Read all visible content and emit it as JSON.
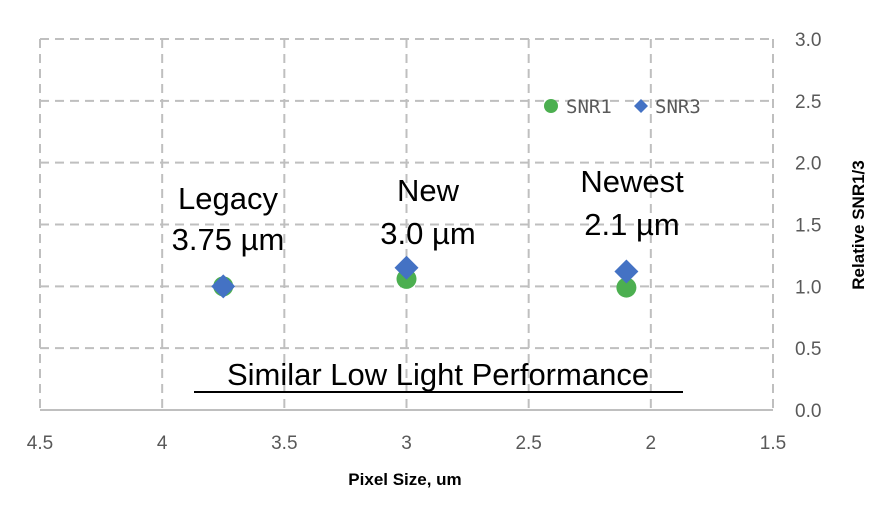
{
  "chart_data": {
    "type": "scatter",
    "title": "",
    "xlabel": "Pixel Size, um",
    "ylabel": "Relative SNR1/3",
    "xlim": [
      4.5,
      1.5
    ],
    "x_reversed": true,
    "ylim": [
      0,
      3.0
    ],
    "xticks": [
      "4.5",
      "4",
      "3.5",
      "3",
      "2.5",
      "2",
      "1.5"
    ],
    "xtick_values": [
      4.5,
      4.0,
      3.5,
      3.0,
      2.5,
      2.0,
      1.5
    ],
    "yticks": [
      "0.0",
      "0.5",
      "1.0",
      "1.5",
      "2.0",
      "2.5",
      "3.0"
    ],
    "ytick_values": [
      0,
      0.5,
      1.0,
      1.5,
      2.0,
      2.5,
      3.0
    ],
    "y_axis_side": "right",
    "grid": true,
    "legend_position": "top-right",
    "series": [
      {
        "name": "SNR1",
        "marker": "circle",
        "color": "#4caf50",
        "x": [
          3.75,
          3.0,
          2.1
        ],
        "y": [
          1.0,
          1.06,
          0.99
        ]
      },
      {
        "name": "SNR3",
        "marker": "diamond",
        "color": "#4472c4",
        "x": [
          3.75,
          3.0,
          2.1
        ],
        "y": [
          1.0,
          1.15,
          1.12
        ]
      }
    ],
    "annotations": [
      {
        "id": "legacy",
        "lines": [
          "Legacy",
          "3.75 µm"
        ]
      },
      {
        "id": "new",
        "lines": [
          "New",
          "3.0 µm"
        ]
      },
      {
        "id": "newest",
        "lines": [
          "Newest",
          "2.1 µm"
        ]
      }
    ],
    "headline": "Similar Low Light Performance"
  }
}
